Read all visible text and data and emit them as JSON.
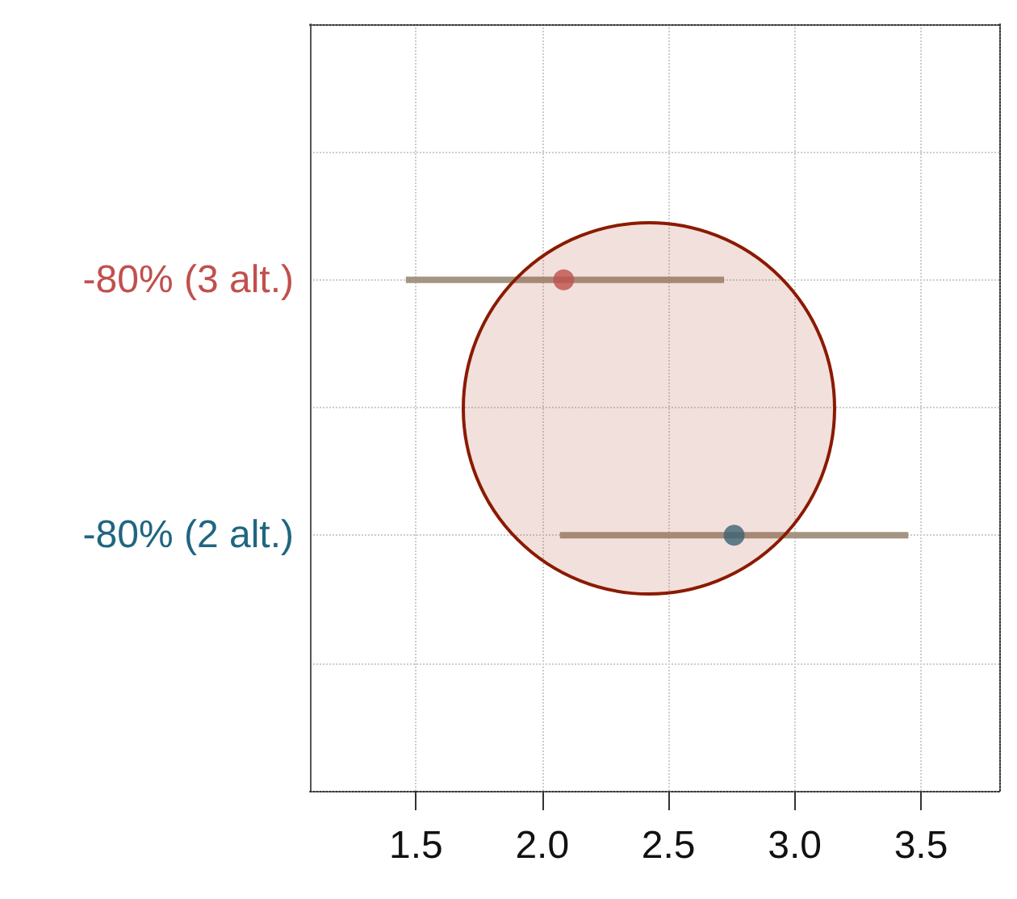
{
  "chart_data": {
    "type": "scatter",
    "orientation": "horizontal",
    "categories": [
      null,
      null,
      "-80% (3 alt.)",
      null,
      "-80% (2 alt.)",
      null,
      null
    ],
    "series": [
      {
        "color": "#c0504d",
        "values": [
          null,
          null,
          2.085,
          null,
          null,
          null,
          null
        ],
        "errors": [
          null,
          null,
          [
            1.46,
            2.72
          ],
          null,
          null,
          null,
          null
        ]
      },
      {
        "color": "#1f6680",
        "values": [
          null,
          null,
          null,
          null,
          2.76,
          null,
          null
        ],
        "errors": [
          null,
          null,
          null,
          null,
          [
            2.07,
            3.45
          ],
          null,
          null
        ]
      }
    ],
    "xlim": [
      1.08,
      3.81
    ],
    "xticks": [
      1.5,
      {
        "value": 2,
        "label": "2.0"
      },
      2.5,
      {
        "value": 3,
        "label": "3.0"
      },
      3.5
    ],
    "grid": true,
    "marker": "circle"
  }
}
